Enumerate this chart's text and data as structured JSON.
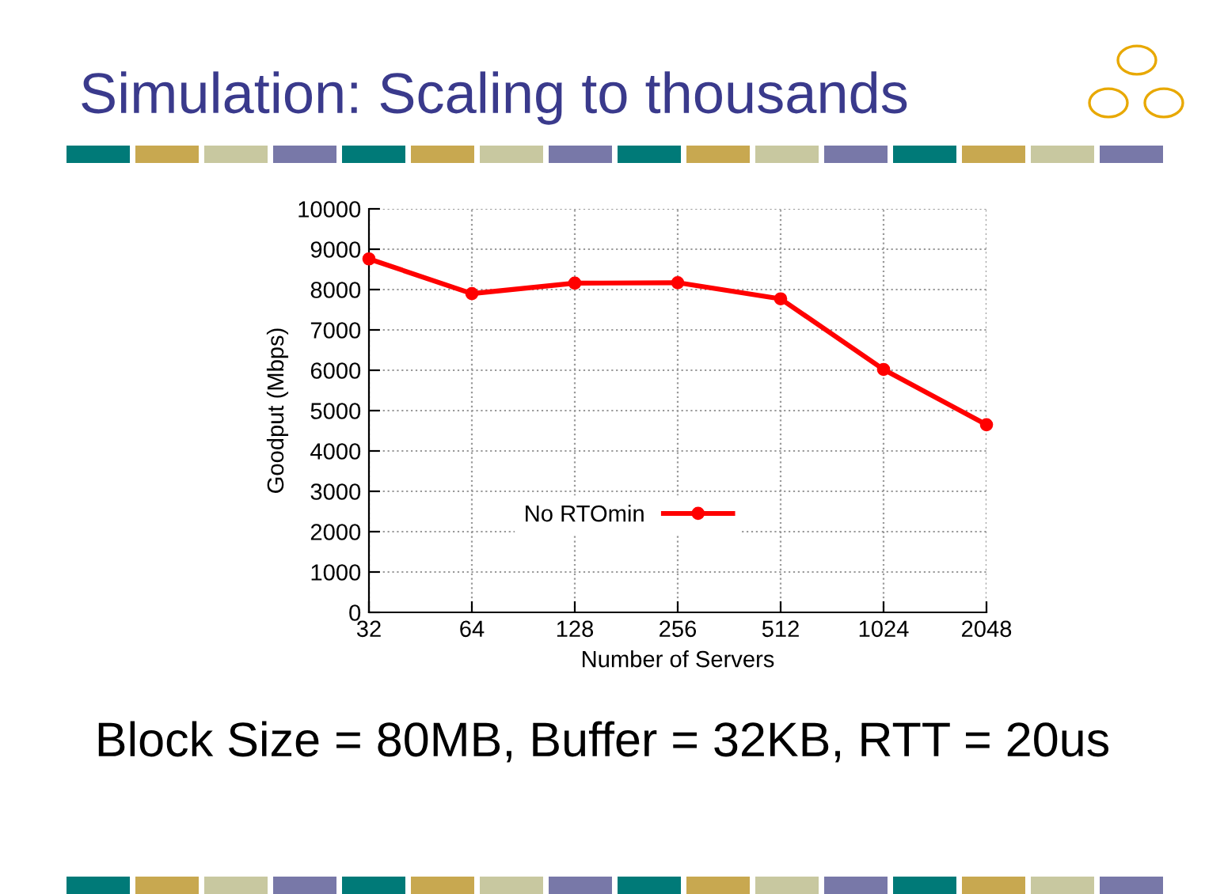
{
  "chart_data": {
    "type": "line",
    "title": "Simulation: Scaling to thousands",
    "xlabel": "Number of Servers",
    "ylabel": "Goodput (Mbps)",
    "categories": [
      "32",
      "64",
      "128",
      "256",
      "512",
      "1024",
      "2048"
    ],
    "series": [
      {
        "name": "No RTOmin",
        "color": "#ff0000",
        "values": [
          8760,
          7900,
          8160,
          8170,
          7770,
          6020,
          4650
        ]
      }
    ],
    "ylim": [
      0,
      10000
    ],
    "yticks": [
      0,
      1000,
      2000,
      3000,
      4000,
      5000,
      6000,
      7000,
      8000,
      9000,
      10000
    ],
    "grid": true,
    "legend": "bottom",
    "marker": "circle",
    "line_style": "solid",
    "annotations": [
      "Block Size = 80MB, Buffer = 32KB, RTT = 20us"
    ]
  }
}
